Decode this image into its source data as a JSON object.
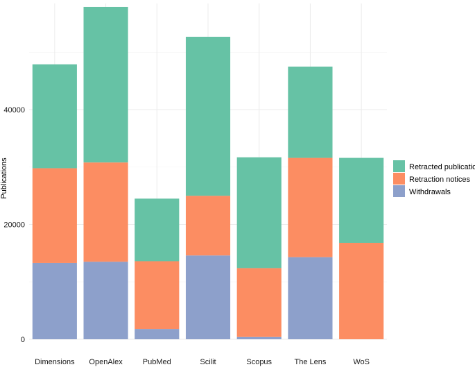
{
  "chart_data": {
    "type": "bar",
    "stacked": true,
    "title": "",
    "xlabel": "",
    "ylabel": "Publications",
    "ylim": [
      0,
      60000
    ],
    "yticks": [
      0,
      20000,
      40000,
      60000
    ],
    "grid": true,
    "legend_position": "right",
    "categories": [
      "Dimensions",
      "OpenAlex",
      "PubMed",
      "Scilit",
      "Scopus",
      "The Lens",
      "WoS"
    ],
    "series": [
      {
        "name": "Withdrawals",
        "color": "#8da0cb",
        "values": [
          13300,
          13500,
          1800,
          14600,
          400,
          14300,
          0
        ]
      },
      {
        "name": "Retraction notices",
        "color": "#fc8d62",
        "values": [
          16500,
          17300,
          11800,
          10400,
          12000,
          17300,
          16800
        ]
      },
      {
        "name": "Retracted publications",
        "color": "#66c2a5",
        "values": [
          18100,
          27100,
          10900,
          27700,
          19300,
          15900,
          14800
        ]
      }
    ],
    "legend_order": [
      "Retracted publications",
      "Retraction notices",
      "Withdrawals"
    ]
  }
}
